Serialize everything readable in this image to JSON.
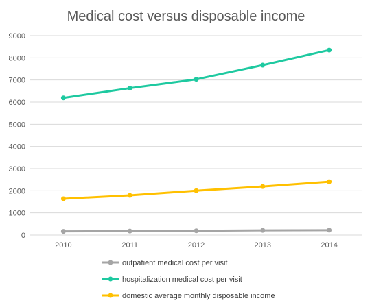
{
  "chart_data": {
    "type": "line",
    "title": "Medical cost versus disposable income",
    "categories": [
      "2010",
      "2011",
      "2012",
      "2013",
      "2014"
    ],
    "ylim": [
      0,
      9000
    ],
    "yticks": [
      0,
      1000,
      2000,
      3000,
      4000,
      5000,
      6000,
      7000,
      8000,
      9000
    ],
    "grid": true,
    "legend_position": "bottom",
    "series": [
      {
        "name": "outpatient medical cost per visit",
        "color": "#a5a5a5",
        "values": [
          167,
          180,
          193,
          212,
          220
        ]
      },
      {
        "name": "hospitalization medical cost per visit",
        "color": "#1ec9a0",
        "values": [
          6193,
          6632,
          7030,
          7670,
          8348
        ]
      },
      {
        "name": "domestic average monthly disposable income",
        "color": "#ffc000",
        "values": [
          1641,
          1792,
          2004,
          2193,
          2408
        ]
      }
    ]
  }
}
